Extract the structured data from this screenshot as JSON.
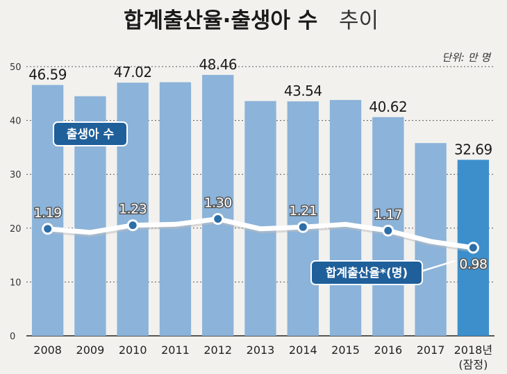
{
  "title_main": "합계출산율·출생아 수",
  "title_sub": "추이",
  "unit_label": "단위: 만 명",
  "births_legend": "출생아 수",
  "rate_legend": "합계출산율*(명)",
  "colors": {
    "bar": "#8cb3d9",
    "bar_highlight": "#3d8fcc",
    "line": "#ffffff",
    "dot": "#2c6ea8",
    "box": "#1f5f9a"
  },
  "chart_data": {
    "type": "bar",
    "categories": [
      "2008",
      "2009",
      "2010",
      "2011",
      "2012",
      "2013",
      "2014",
      "2015",
      "2016",
      "2017",
      "2018년"
    ],
    "category_note": "(잠정)",
    "ylim": [
      0,
      50
    ],
    "yticks": [
      0,
      10,
      20,
      30,
      40,
      50
    ],
    "grid": true,
    "series": [
      {
        "name": "출생아 수",
        "type": "bar",
        "values": [
          46.59,
          44.5,
          47.02,
          47.1,
          48.46,
          43.6,
          43.54,
          43.8,
          40.62,
          35.8,
          32.69
        ],
        "labels": [
          "46.59",
          "",
          "47.02",
          "",
          "48.46",
          "",
          "43.54",
          "",
          "40.62",
          "",
          "32.69"
        ]
      },
      {
        "name": "합계출산율*(명)",
        "type": "line",
        "values": [
          1.19,
          1.15,
          1.23,
          1.24,
          1.3,
          1.19,
          1.21,
          1.24,
          1.17,
          1.05,
          0.98
        ],
        "labels": [
          "1.19",
          "",
          "1.23",
          "",
          "1.30",
          "",
          "1.21",
          "",
          "1.17",
          "",
          "0.98"
        ],
        "markers": [
          true,
          false,
          true,
          false,
          true,
          false,
          true,
          false,
          true,
          false,
          true
        ]
      }
    ]
  }
}
